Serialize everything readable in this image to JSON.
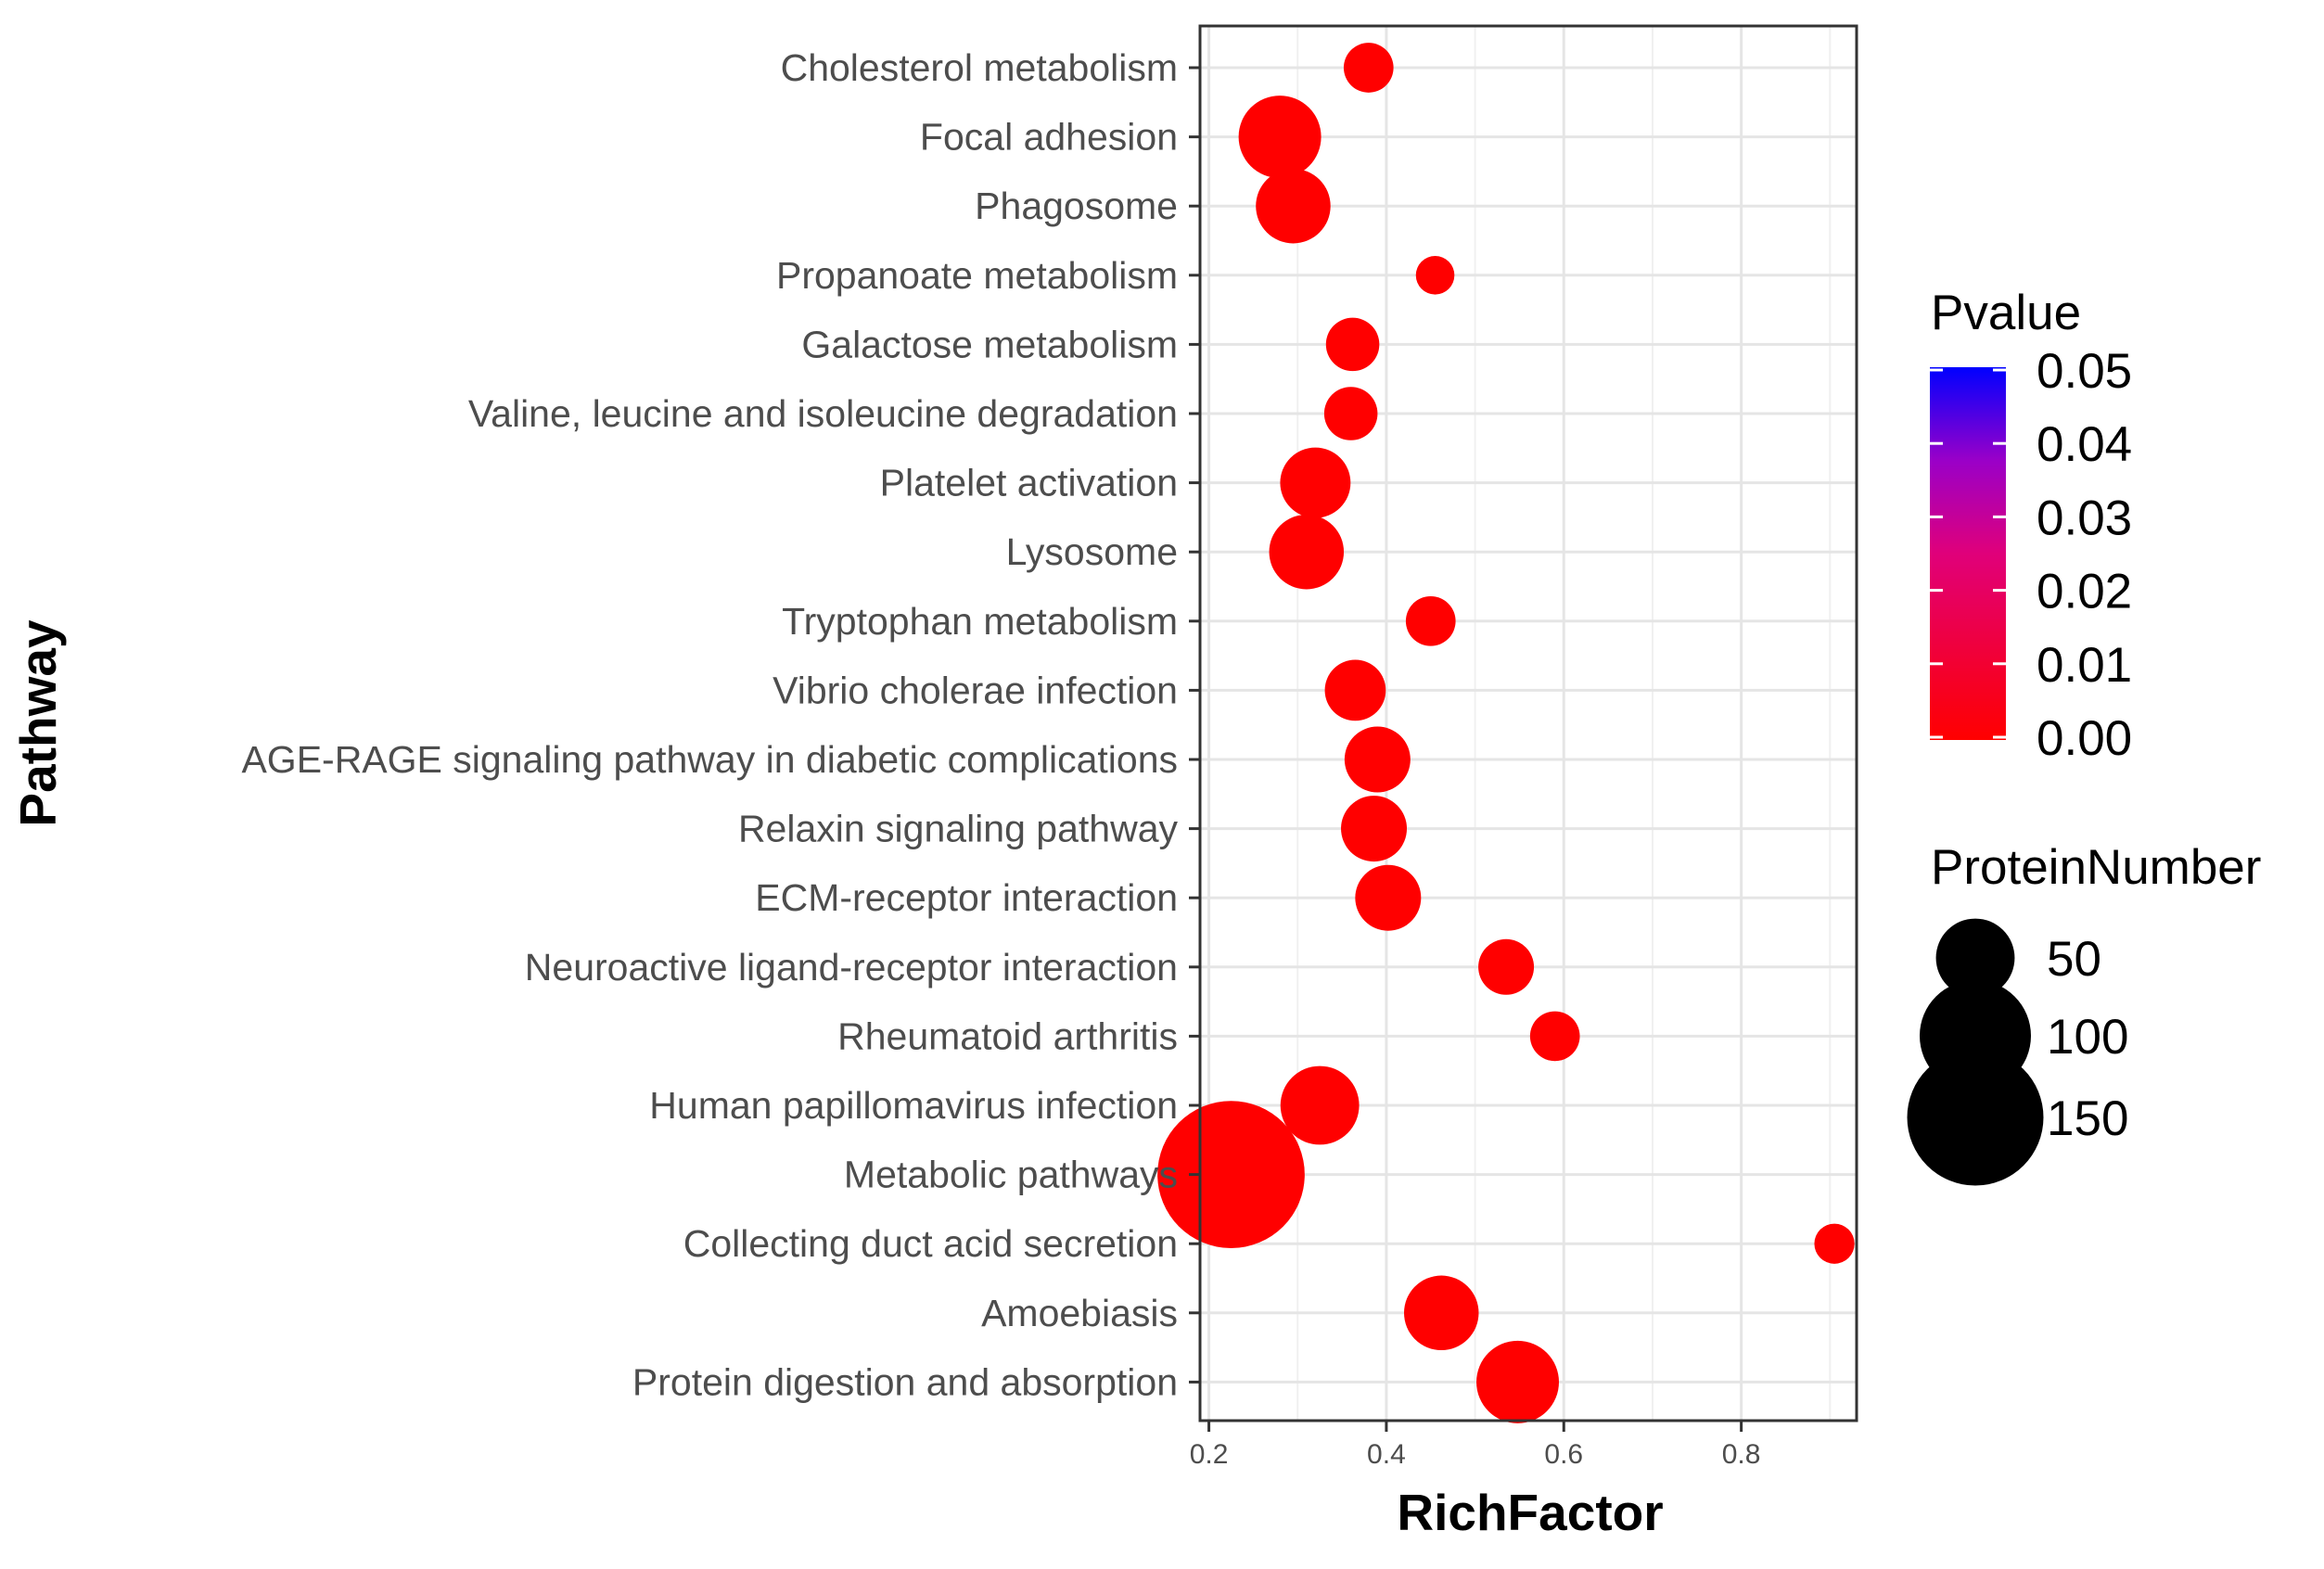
{
  "chart_data": {
    "type": "scatter",
    "xlabel": "RichFactor",
    "ylabel": "Pathway",
    "xlim": [
      0.19,
      0.93
    ],
    "x_ticks": [
      {
        "value": 0.2,
        "label": "0.2"
      },
      {
        "value": 0.4,
        "label": "0.4"
      },
      {
        "value": 0.6,
        "label": "0.6"
      },
      {
        "value": 0.8,
        "label": "0.8"
      }
    ],
    "grid": true,
    "points": [
      {
        "pathway": "Cholesterol metabolism",
        "rich_factor": 0.38,
        "protein_number": 20,
        "pvalue": 0.0
      },
      {
        "pathway": "Focal adhesion",
        "rich_factor": 0.28,
        "protein_number": 55,
        "pvalue": 0.0
      },
      {
        "pathway": "Phagosome",
        "rich_factor": 0.295,
        "protein_number": 45,
        "pvalue": 0.0
      },
      {
        "pathway": "Propanoate metabolism",
        "rich_factor": 0.455,
        "protein_number": 12,
        "pvalue": 0.0
      },
      {
        "pathway": "Galactose metabolism",
        "rich_factor": 0.362,
        "protein_number": 23,
        "pvalue": 0.0
      },
      {
        "pathway": "Valine, leucine and isoleucine degradation",
        "rich_factor": 0.36,
        "protein_number": 23,
        "pvalue": 0.0
      },
      {
        "pathway": "Platelet activation",
        "rich_factor": 0.32,
        "protein_number": 40,
        "pvalue": 0.0
      },
      {
        "pathway": "Lysosome",
        "rich_factor": 0.31,
        "protein_number": 45,
        "pvalue": 0.0
      },
      {
        "pathway": "Tryptophan metabolism",
        "rich_factor": 0.45,
        "protein_number": 20,
        "pvalue": 0.0
      },
      {
        "pathway": "Vibrio cholerae infection",
        "rich_factor": 0.365,
        "protein_number": 30,
        "pvalue": 0.0
      },
      {
        "pathway": "AGE-RAGE signaling pathway in diabetic complications",
        "rich_factor": 0.39,
        "protein_number": 35,
        "pvalue": 0.0
      },
      {
        "pathway": "Relaxin signaling pathway",
        "rich_factor": 0.386,
        "protein_number": 35,
        "pvalue": 0.0
      },
      {
        "pathway": "ECM-receptor interaction",
        "rich_factor": 0.402,
        "protein_number": 35,
        "pvalue": 0.0
      },
      {
        "pathway": "Neuroactive ligand-receptor interaction",
        "rich_factor": 0.535,
        "protein_number": 25,
        "pvalue": 0.0
      },
      {
        "pathway": "Rheumatoid arthritis",
        "rich_factor": 0.59,
        "protein_number": 20,
        "pvalue": 0.0
      },
      {
        "pathway": "Human papillomavirus infection",
        "rich_factor": 0.325,
        "protein_number": 50,
        "pvalue": 0.0
      },
      {
        "pathway": "Metabolic pathways",
        "rich_factor": 0.225,
        "protein_number": 175,
        "pvalue": 0.0
      },
      {
        "pathway": "Collecting duct acid secretion",
        "rich_factor": 0.905,
        "protein_number": 13,
        "pvalue": 0.0
      },
      {
        "pathway": "Amoebiasis",
        "rich_factor": 0.462,
        "protein_number": 45,
        "pvalue": 0.0
      },
      {
        "pathway": "Protein digestion and absorption",
        "rich_factor": 0.548,
        "protein_number": 55,
        "pvalue": 0.0
      }
    ],
    "color_legend": {
      "title": "Pvalue",
      "low_color": "#ff0000",
      "high_color": "#0000ff",
      "ticks": [
        {
          "value": 0.05,
          "label": "0.05"
        },
        {
          "value": 0.04,
          "label": "0.04"
        },
        {
          "value": 0.03,
          "label": "0.03"
        },
        {
          "value": 0.02,
          "label": "0.02"
        },
        {
          "value": 0.01,
          "label": "0.01"
        },
        {
          "value": 0.0,
          "label": "0.00"
        }
      ]
    },
    "size_legend": {
      "title": "ProteinNumber",
      "entries": [
        {
          "value": 50,
          "label": "50"
        },
        {
          "value": 100,
          "label": "100"
        },
        {
          "value": 150,
          "label": "150"
        }
      ]
    }
  }
}
